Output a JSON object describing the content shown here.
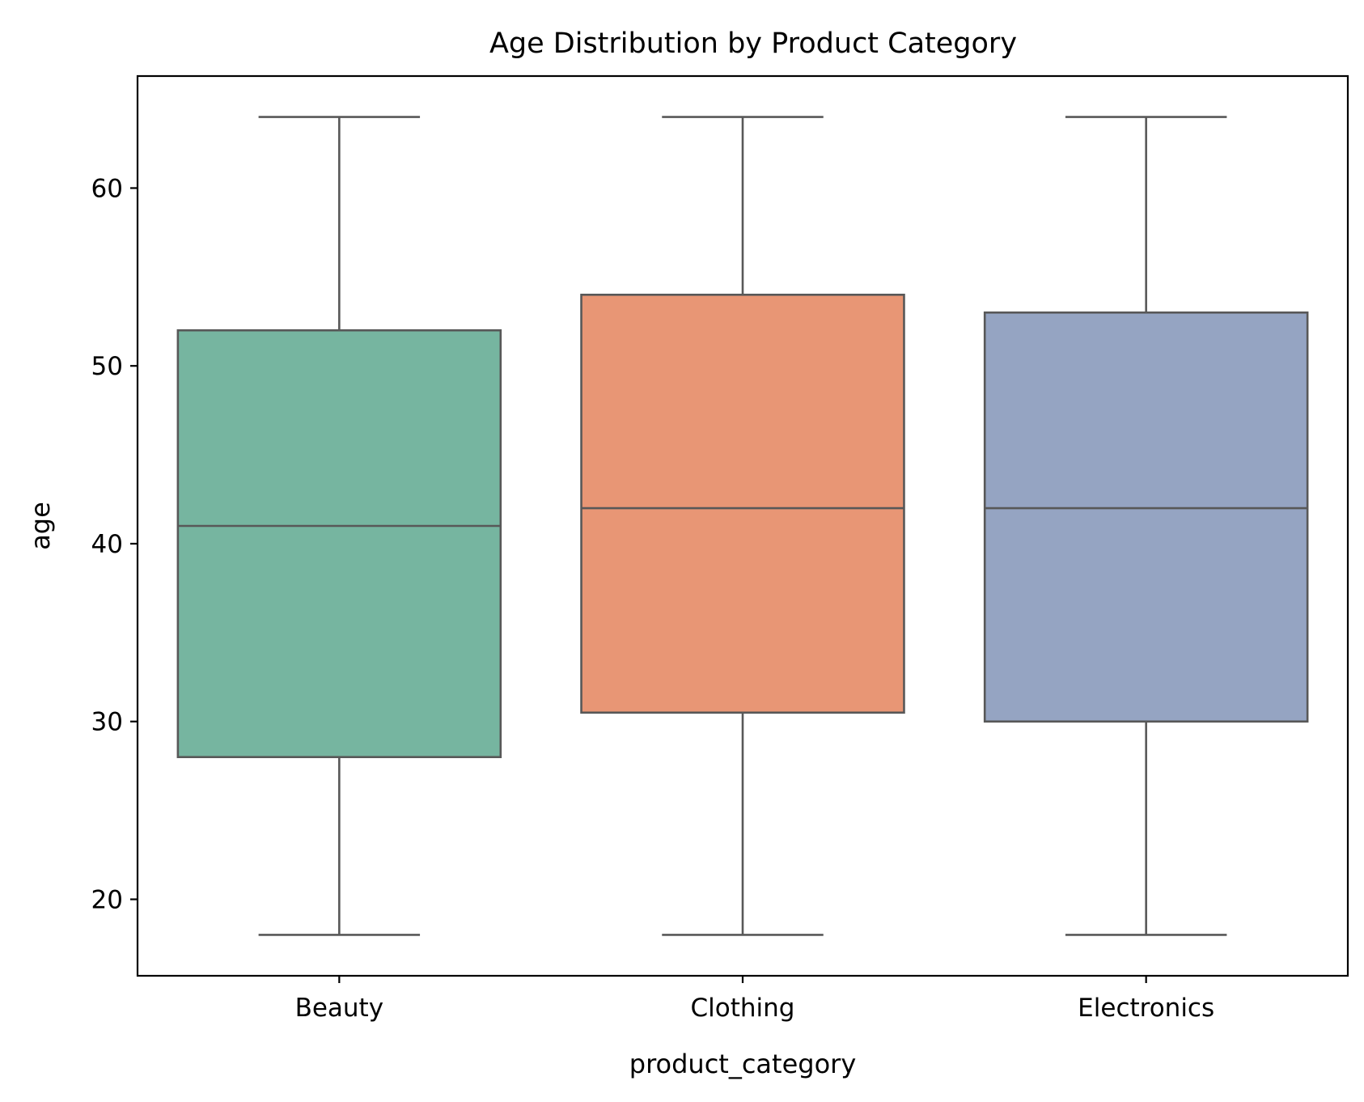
{
  "chart_data": {
    "type": "box",
    "title": "Age Distribution by Product Category",
    "xlabel": "product_category",
    "ylabel": "age",
    "ylim": [
      15.7,
      66.3
    ],
    "yticks": [
      20,
      30,
      40,
      50,
      60
    ],
    "grid": false,
    "categories": [
      "Beauty",
      "Clothing",
      "Electronics"
    ],
    "boxes": [
      {
        "category": "Beauty",
        "whisker_low": 18,
        "q1": 28,
        "median": 41,
        "q3": 52,
        "whisker_high": 64,
        "color": "#76b5a0"
      },
      {
        "category": "Clothing",
        "whisker_low": 18,
        "q1": 30.5,
        "median": 42,
        "q3": 54,
        "whisker_high": 64,
        "color": "#e89675"
      },
      {
        "category": "Electronics",
        "whisker_low": 18,
        "q1": 30,
        "median": 42,
        "q3": 53,
        "whisker_high": 64,
        "color": "#95a4c2"
      }
    ],
    "line_color": "#585858"
  }
}
